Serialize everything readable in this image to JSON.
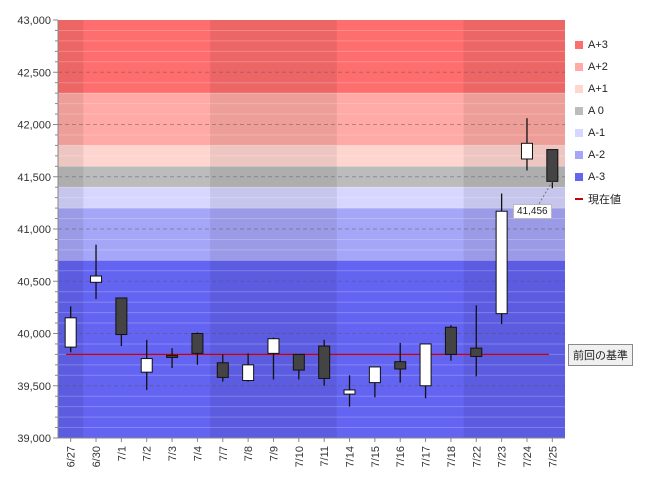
{
  "chart_data": {
    "type": "candlestick",
    "categories": [
      "6/27",
      "6/30",
      "7/1",
      "7/2",
      "7/3",
      "7/4",
      "7/7",
      "7/8",
      "7/9",
      "7/10",
      "7/11",
      "7/14",
      "7/15",
      "7/16",
      "7/17",
      "7/18",
      "7/22",
      "7/23",
      "7/24",
      "7/25"
    ],
    "ohlc": [
      {
        "open": 39870,
        "high": 40260,
        "low": 39820,
        "close": 40150
      },
      {
        "open": 40490,
        "high": 40850,
        "low": 40330,
        "close": 40550
      },
      {
        "open": 40340,
        "high": 40340,
        "low": 39880,
        "close": 39990
      },
      {
        "open": 39630,
        "high": 39940,
        "low": 39460,
        "close": 39760
      },
      {
        "open": 39790,
        "high": 39860,
        "low": 39670,
        "close": 39780
      },
      {
        "open": 40000,
        "high": 40010,
        "low": 39700,
        "close": 39810
      },
      {
        "open": 39720,
        "high": 39800,
        "low": 39540,
        "close": 39580
      },
      {
        "open": 39550,
        "high": 39810,
        "low": 39540,
        "close": 39700
      },
      {
        "open": 39810,
        "high": 39960,
        "low": 39560,
        "close": 39950
      },
      {
        "open": 39800,
        "high": 39800,
        "low": 39560,
        "close": 39650
      },
      {
        "open": 39880,
        "high": 39940,
        "low": 39500,
        "close": 39570
      },
      {
        "open": 39420,
        "high": 39600,
        "low": 39300,
        "close": 39460
      },
      {
        "open": 39530,
        "high": 39680,
        "low": 39390,
        "close": 39680
      },
      {
        "open": 39730,
        "high": 39910,
        "low": 39530,
        "close": 39660
      },
      {
        "open": 39500,
        "high": 39900,
        "low": 39380,
        "close": 39900
      },
      {
        "open": 40060,
        "high": 40080,
        "low": 39740,
        "close": 39800
      },
      {
        "open": 39860,
        "high": 40270,
        "low": 39590,
        "close": 39780
      },
      {
        "open": 40190,
        "high": 41340,
        "low": 40090,
        "close": 41170
      },
      {
        "open": 41670,
        "high": 42060,
        "low": 41560,
        "close": 41820
      },
      {
        "open": 41760,
        "high": 41760,
        "low": 41390,
        "close": 41456
      }
    ],
    "ylim": [
      39000,
      43000
    ],
    "yticks": [
      39000,
      39500,
      40000,
      40500,
      41000,
      41500,
      42000,
      42500,
      43000
    ],
    "ytick_labels": [
      "39,000",
      "39,500",
      "40,000",
      "40,500",
      "41,000",
      "41,500",
      "42,000",
      "42,500",
      "43,000"
    ],
    "bands": [
      {
        "label": "A+3",
        "from": 42300,
        "to": 43000,
        "color": "#ff6e6e"
      },
      {
        "label": "A+2",
        "from": 41800,
        "to": 42300,
        "color": "#ffaaa4"
      },
      {
        "label": "A+1",
        "from": 41600,
        "to": 41800,
        "color": "#ffd5d0"
      },
      {
        "label": "A 0",
        "from": 41400,
        "to": 41600,
        "color": "#bcbcbc"
      },
      {
        "label": "A-1",
        "from": 41200,
        "to": 41400,
        "color": "#d6d6ff"
      },
      {
        "label": "A-2",
        "from": 40700,
        "to": 41200,
        "color": "#a6a6f8"
      },
      {
        "label": "A-3",
        "from": 39000,
        "to": 40700,
        "color": "#6464f2"
      }
    ],
    "week_shading": [
      [
        0,
        0
      ],
      [
        6,
        10
      ],
      [
        16,
        19
      ]
    ],
    "reference_line": {
      "value": 39800,
      "color": "#cc0000"
    },
    "current_value": 41456,
    "current_value_label": "41,456",
    "legend": [
      {
        "label": "A+3",
        "color": "#ff6e6e",
        "kind": "box"
      },
      {
        "label": "A+2",
        "color": "#ffaaa4",
        "kind": "box"
      },
      {
        "label": "A+1",
        "color": "#ffd5d0",
        "kind": "box"
      },
      {
        "label": "A 0",
        "color": "#bcbcbc",
        "kind": "box"
      },
      {
        "label": "A-1",
        "color": "#d6d6ff",
        "kind": "box"
      },
      {
        "label": "A-2",
        "color": "#a6a6f8",
        "kind": "box"
      },
      {
        "label": "A-3",
        "color": "#6464f2",
        "kind": "box"
      },
      {
        "label": "現在値",
        "color": "#cc0000",
        "kind": "line"
      }
    ],
    "reference_label": "前回の基準",
    "grid": true,
    "legend_position": "right"
  }
}
